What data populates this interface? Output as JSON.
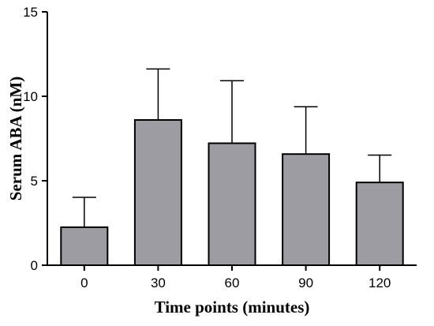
{
  "chart_data": {
    "type": "bar",
    "title": "",
    "xlabel": "Time points (minutes)",
    "ylabel": "Serum ABA  (nM)",
    "categories": [
      "0",
      "30",
      "60",
      "90",
      "120"
    ],
    "values": [
      2.25,
      8.6,
      7.22,
      6.58,
      4.9
    ],
    "error_upper": [
      4.02,
      11.62,
      10.92,
      9.38,
      6.52
    ],
    "ylim": [
      0,
      15
    ],
    "yticks": [
      0,
      5,
      10,
      15
    ],
    "yticklabels": [
      "0",
      "5",
      "10",
      "15"
    ],
    "bar_color": "#9d9ca3",
    "edge_color": "#000000",
    "grid": false,
    "legend": "none"
  }
}
